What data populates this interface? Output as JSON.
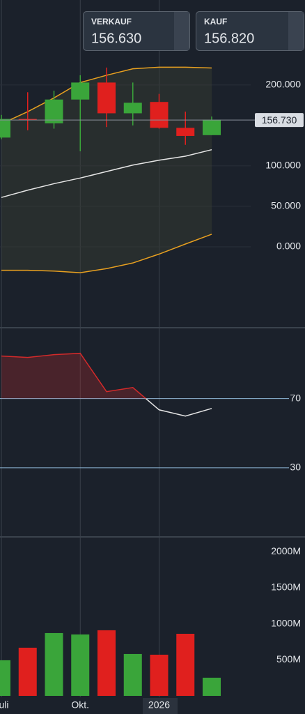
{
  "trade_buttons": [
    {
      "label": "VERKAUF",
      "price": "156.630"
    },
    {
      "label": "KAUF",
      "price": "156.820"
    }
  ],
  "chart_data": [
    {
      "type": "candlestick",
      "open": [
        135,
        158,
        152.6,
        182,
        203,
        165,
        179,
        147,
        138
      ],
      "high": [
        163,
        191,
        193,
        212,
        221.5,
        203,
        189,
        167,
        161
      ],
      "low": [
        133,
        144,
        146,
        118,
        148,
        150,
        146,
        126,
        138
      ],
      "close": [
        158,
        157,
        182,
        203,
        165,
        178,
        147,
        137,
        157
      ],
      "up_color": "#3aa53a",
      "down_color": "#e0201e",
      "bands": {
        "upper": [
          152,
          167,
          184,
          203,
          212,
          220,
          222,
          222,
          221
        ],
        "middle": [
          61,
          70,
          78,
          85,
          93,
          101,
          107,
          112,
          120
        ],
        "lower": [
          -29,
          -29,
          -30,
          -32,
          -27,
          -20,
          -9,
          3.4,
          15.5
        ],
        "band_color": "#e8a020",
        "middle_color": "#e6e6e6"
      },
      "last_price": {
        "value": 156.73,
        "label": "156.730"
      },
      "ylim": [
        -100,
        305
      ],
      "yticks": [
        {
          "value": 0,
          "label": "0.000"
        },
        {
          "value": 50,
          "label": "50.000"
        },
        {
          "value": 100,
          "label": "100.000"
        },
        {
          "value": 200,
          "label": "200.000"
        }
      ],
      "grid": true
    },
    {
      "type": "rsi",
      "values": [
        94.6,
        93.8,
        95.4,
        96.2,
        74,
        76.4,
        63.5,
        59.9,
        64.3
      ],
      "threshold": 70,
      "color_above": "#d42a2a",
      "color_below": "#e6e6e6",
      "ylim": [
        -10,
        111
      ],
      "yticks": [
        30,
        70
      ],
      "level_color": "#8fb8d8"
    },
    {
      "type": "bar",
      "categories": [
        "Juli",
        null,
        null,
        "Okt.",
        null,
        null,
        "2026",
        null,
        null
      ],
      "values": [
        494,
        668,
        871,
        852,
        910,
        581,
        571,
        861,
        252
      ],
      "colors": [
        "#3aa53a",
        "#e0201e",
        "#3aa53a",
        "#3aa53a",
        "#e0201e",
        "#3aa53a",
        "#e0201e",
        "#e0201e",
        "#3aa53a"
      ],
      "ylim": [
        0,
        2205
      ],
      "yticks": [
        {
          "value": 500,
          "label": "500M"
        },
        {
          "value": 1000,
          "label": "1000M"
        },
        {
          "value": 1500,
          "label": "1500M"
        },
        {
          "value": 2000,
          "label": "2000M"
        }
      ]
    }
  ]
}
